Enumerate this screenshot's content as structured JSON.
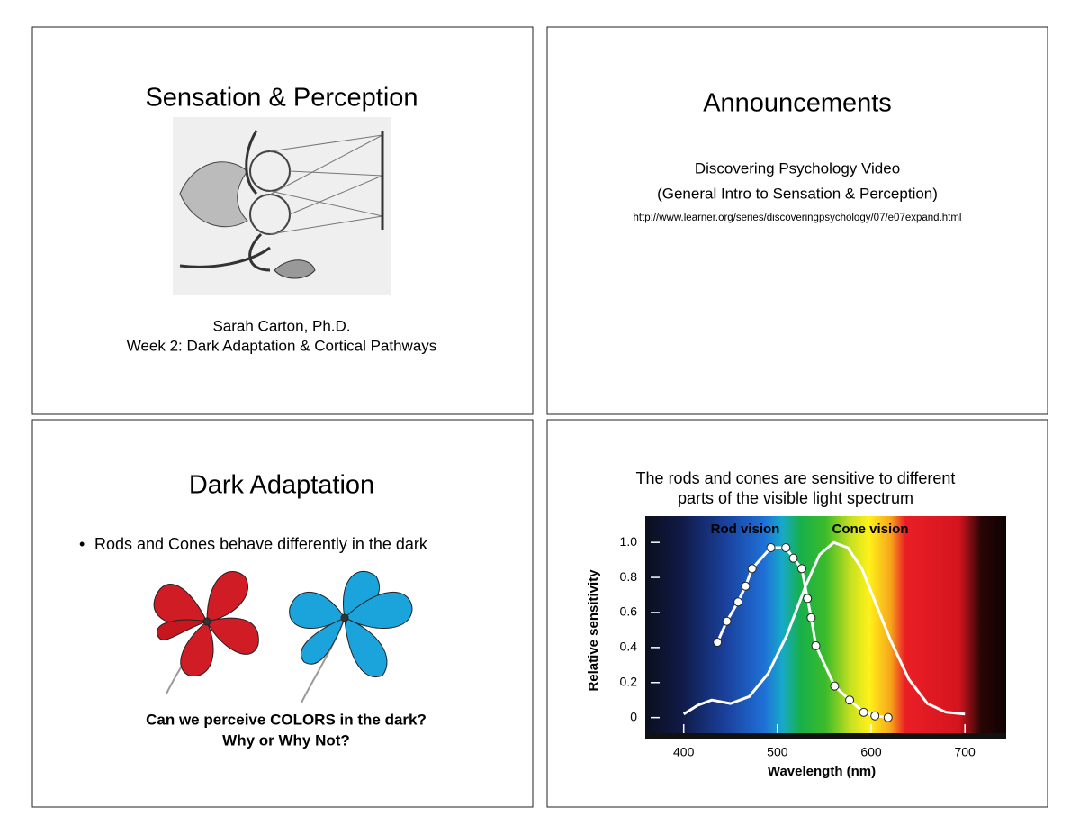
{
  "slides": [
    {
      "title": "Sensation & Perception",
      "author": "Sarah Carton, Ph.D.",
      "subtitle": "Week 2: Dark Adaptation & Cortical Pathways"
    },
    {
      "title": "Announcements",
      "items": [
        "Discovering Psychology Video",
        "(General Intro to Sensation & Perception)"
      ],
      "url": "http://www.learner.org/series/discoveringpsychology/07/e07expand.html"
    },
    {
      "title": "Dark Adaptation",
      "bullet": "Rods and Cones behave differently in the dark",
      "question": [
        "Can we perceive COLORS in the dark?",
        "Why or Why Not?"
      ]
    }
  ],
  "chart_data": {
    "type": "line",
    "title": [
      "The rods and cones are sensitive to different",
      "parts of the visible light spectrum"
    ],
    "x_label": "Wavelength (nm)",
    "y_label": "Relative sensitivity",
    "xlim": [
      359,
      744
    ],
    "ylim": [
      -0.12,
      1.15
    ],
    "xticks": [
      400,
      500,
      600,
      700
    ],
    "yticks": [
      0,
      0.2,
      0.4,
      0.6,
      0.8,
      {
        "value": 1,
        "label": "1.0"
      }
    ],
    "series": [
      {
        "name": "Rod vision",
        "color": "#ffffff",
        "markers": true,
        "x": [
          436,
          446,
          458,
          466,
          473,
          493,
          509,
          517,
          526,
          532,
          536,
          541,
          561,
          577,
          592,
          604,
          618
        ],
        "values": [
          0.43,
          0.55,
          0.66,
          0.75,
          0.85,
          0.97,
          0.97,
          0.91,
          0.85,
          0.68,
          0.57,
          0.41,
          0.18,
          0.1,
          0.03,
          0.01,
          0
        ]
      },
      {
        "name": "Cone vision",
        "color": "#ffffff",
        "markers": false,
        "x": [
          400,
          415,
          430,
          450,
          470,
          490,
          510,
          530,
          545,
          560,
          575,
          590,
          605,
          620,
          640,
          660,
          680,
          700
        ],
        "values": [
          0.02,
          0.07,
          0.1,
          0.08,
          0.12,
          0.25,
          0.47,
          0.75,
          0.93,
          1,
          0.97,
          0.85,
          0.65,
          0.45,
          0.22,
          0.08,
          0.03,
          0.02
        ]
      }
    ]
  }
}
